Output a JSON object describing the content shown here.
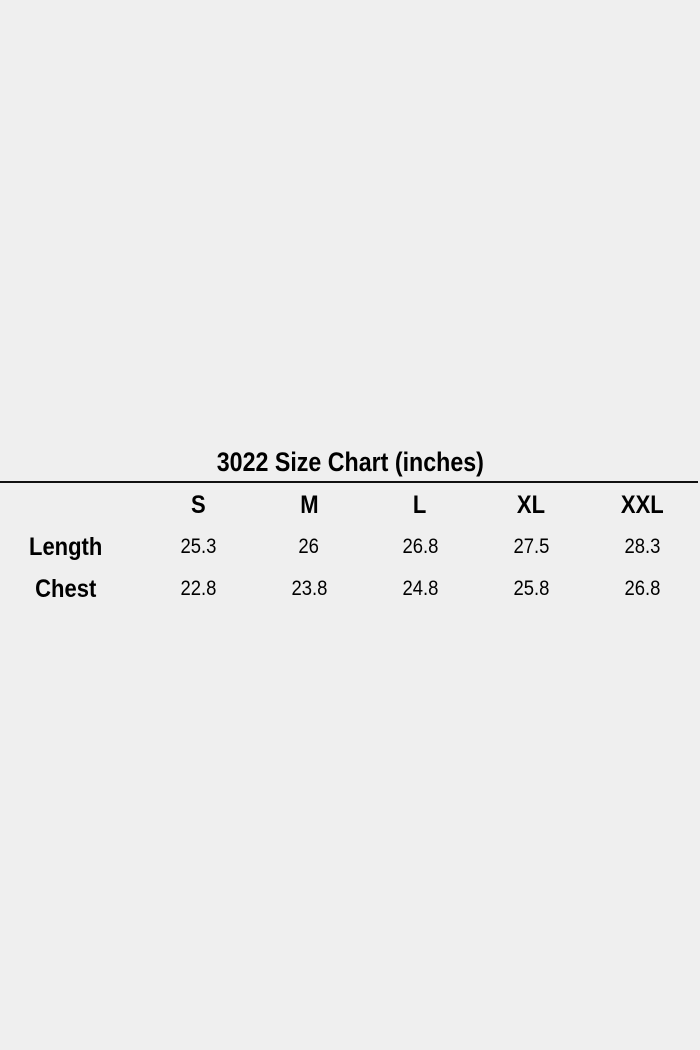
{
  "title": "3022 Size Chart (inches)",
  "table": {
    "columns": [
      "S",
      "M",
      "L",
      "XL",
      "XXL"
    ],
    "rows": [
      {
        "label": "Length",
        "values": [
          "25.3",
          "26",
          "26.8",
          "27.5",
          "28.3"
        ]
      },
      {
        "label": "Chest",
        "values": [
          "22.8",
          "23.8",
          "24.8",
          "25.8",
          "26.8"
        ]
      }
    ]
  },
  "colors": {
    "background": "#efefef",
    "text": "#000000"
  }
}
